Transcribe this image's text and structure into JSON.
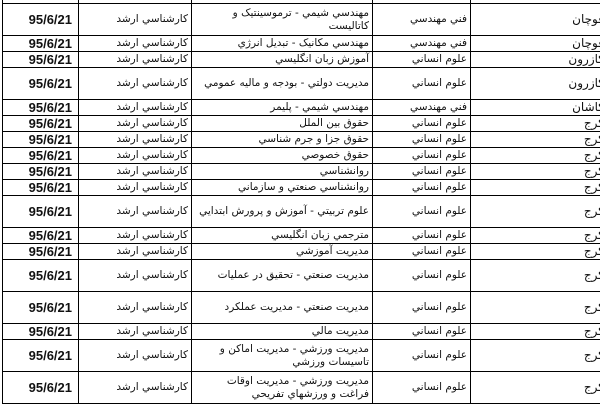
{
  "rows": [
    {
      "city": "قوچان",
      "field": "فني مهندسي",
      "major": "مهندسي شيمي - ترموسينتيک و کاتاليست",
      "degree": "کارشناسي ارشد",
      "date": "95/6/21",
      "tall": true
    },
    {
      "city": "قوچان",
      "field": "فني مهندسي",
      "major": "مهندسي مکانيک - تبديل انرژي",
      "degree": "کارشناسي ارشد",
      "date": "95/6/21",
      "tall": false
    },
    {
      "city": "کازرون",
      "field": "علوم انساني",
      "major": "آموزش زبان انگليسي",
      "degree": "کارشناسي ارشد",
      "date": "95/6/21",
      "tall": false
    },
    {
      "city": "کازرون",
      "field": "علوم انساني",
      "major": "مديريت دولتي - بودجه و ماليه عمومي",
      "degree": "کارشناسي ارشد",
      "date": "95/6/21",
      "tall": true
    },
    {
      "city": "کاشان",
      "field": "فني مهندسي",
      "major": "مهندسي شيمي - پليمر",
      "degree": "کارشناسي ارشد",
      "date": "95/6/21",
      "tall": false
    },
    {
      "city": "کرج",
      "field": "علوم انساني",
      "major": "حقوق بين الملل",
      "degree": "کارشناسي ارشد",
      "date": "95/6/21",
      "tall": false
    },
    {
      "city": "کرج",
      "field": "علوم انساني",
      "major": "حقوق جزا و جرم شناسي",
      "degree": "کارشناسي ارشد",
      "date": "95/6/21",
      "tall": false
    },
    {
      "city": "کرج",
      "field": "علوم انساني",
      "major": "حقوق خصوصي",
      "degree": "کارشناسي ارشد",
      "date": "95/6/21",
      "tall": false
    },
    {
      "city": "کرج",
      "field": "علوم انساني",
      "major": "روانشناسي",
      "degree": "کارشناسي ارشد",
      "date": "95/6/21",
      "tall": false
    },
    {
      "city": "کرج",
      "field": "علوم انساني",
      "major": "روانشناسي صنعتي و سازماني",
      "degree": "کارشناسي ارشد",
      "date": "95/6/21",
      "tall": false
    },
    {
      "city": "کرج",
      "field": "علوم انساني",
      "major": "علوم تربيتي - آموزش و پرورش ابتدايي",
      "degree": "کارشناسي ارشد",
      "date": "95/6/21",
      "tall": true
    },
    {
      "city": "کرج",
      "field": "علوم انساني",
      "major": "مترجمي زبان انگليسي",
      "degree": "کارشناسي ارشد",
      "date": "95/6/21",
      "tall": false
    },
    {
      "city": "کرج",
      "field": "علوم انساني",
      "major": "مديريت آموزشي",
      "degree": "کارشناسي ارشد",
      "date": "95/6/21",
      "tall": false
    },
    {
      "city": "کرج",
      "field": "علوم انساني",
      "major": "مديريت صنعتي - تحقيق در عمليات",
      "degree": "کارشناسي ارشد",
      "date": "95/6/21",
      "tall": true
    },
    {
      "city": "کرج",
      "field": "علوم انساني",
      "major": "مديريت صنعتي - مديريت عملکرد",
      "degree": "کارشناسي ارشد",
      "date": "95/6/21",
      "tall": true
    },
    {
      "city": "کرج",
      "field": "علوم انساني",
      "major": "مديريت مالي",
      "degree": "کارشناسي ارشد",
      "date": "95/6/21",
      "tall": false
    },
    {
      "city": "کرج",
      "field": "علوم انساني",
      "major": "مديريت ورزشي - مديريت اماکن و تاسيسات ورزشي",
      "degree": "کارشناسي ارشد",
      "date": "95/6/21",
      "tall": true
    },
    {
      "city": "کرج",
      "field": "علوم انساني",
      "major": "مديريت ورزشي - مديريت اوقات فراغت و ورزشهاي تفريحي",
      "degree": "کارشناسي ارشد",
      "date": "95/6/21",
      "tall": true
    }
  ]
}
